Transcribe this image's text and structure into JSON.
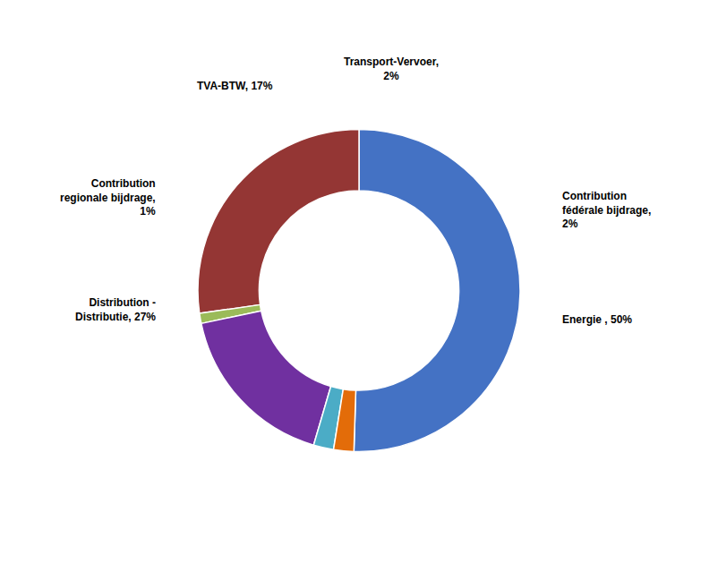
{
  "chart_data": {
    "type": "pie",
    "categories": [
      "Energie , 50%",
      "Distribution -\nDistributie, 27%",
      "Contribution\nregionale bijdrage,\n1%",
      "TVA-BTW, 17%",
      "Transport-Vervoer,\n2%",
      "Contribution\nfédérale bijdrage,\n2%"
    ],
    "values": [
      50,
      27,
      1,
      17,
      2,
      2
    ],
    "colors": [
      "#4472C4",
      "#943634",
      "#9BBB59",
      "#7030A0",
      "#4BACC6",
      "#E36C09"
    ]
  }
}
